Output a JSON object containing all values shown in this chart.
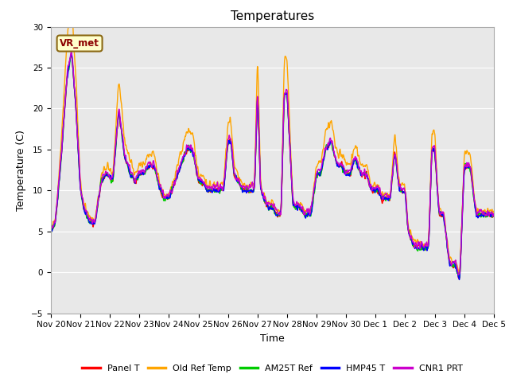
{
  "title": "Temperatures",
  "xlabel": "Time",
  "ylabel": "Temperature (C)",
  "ylim": [
    -5,
    30
  ],
  "background_color": "#ffffff",
  "plot_bg_color": "#e8e8e8",
  "grid_color": "#ffffff",
  "annotation_text": "VR_met",
  "annotation_bg": "#ffffcc",
  "annotation_border": "#8b6914",
  "annotation_text_color": "#8b0000",
  "x_tick_labels": [
    "Nov 20",
    "Nov 21",
    "Nov 22",
    "Nov 23",
    "Nov 24",
    "Nov 25",
    "Nov 26",
    "Nov 27",
    "Nov 28",
    "Nov 29",
    "Nov 30",
    "Dec 1",
    "Dec 2",
    "Dec 3",
    "Dec 4",
    "Dec 5"
  ],
  "series_names": [
    "Panel T",
    "Old Ref Temp",
    "AM25T Ref",
    "HMP45 T",
    "CNR1 PRT"
  ],
  "series_colors": [
    "#ff0000",
    "#ffa500",
    "#00cc00",
    "#0000ff",
    "#cc00cc"
  ],
  "series_lw": [
    1.0,
    1.0,
    1.0,
    1.0,
    1.0
  ],
  "yticks": [
    -5,
    0,
    5,
    10,
    15,
    20,
    25,
    30
  ],
  "title_fontsize": 11,
  "tick_fontsize": 7.5,
  "label_fontsize": 9,
  "ctrl_days": [
    0,
    0.15,
    0.35,
    0.55,
    0.7,
    0.85,
    1.0,
    1.1,
    1.2,
    1.35,
    1.5,
    1.7,
    1.9,
    2.1,
    2.3,
    2.5,
    2.7,
    2.85,
    3.0,
    3.15,
    3.3,
    3.5,
    3.7,
    3.85,
    4.0,
    4.2,
    4.4,
    4.6,
    4.8,
    5.0,
    5.15,
    5.3,
    5.5,
    5.7,
    5.85,
    6.0,
    6.1,
    6.2,
    6.35,
    6.5,
    6.65,
    6.8,
    6.9,
    7.0,
    7.1,
    7.2,
    7.35,
    7.5,
    7.65,
    7.8,
    7.9,
    8.0,
    8.2,
    8.4,
    8.6,
    8.8,
    9.0,
    9.15,
    9.3,
    9.5,
    9.7,
    9.85,
    10.0,
    10.15,
    10.3,
    10.5,
    10.7,
    10.85,
    11.0,
    11.1,
    11.2,
    11.35,
    11.5,
    11.65,
    11.8,
    11.9,
    12.0,
    12.1,
    12.2,
    12.35,
    12.5,
    12.65,
    12.8,
    12.9,
    13.0,
    13.15,
    13.3,
    13.5,
    13.7,
    13.85,
    14.0,
    14.2,
    14.4,
    14.6,
    14.8,
    15.0
  ],
  "ctrl_temps": [
    5,
    6,
    14,
    24,
    27,
    20,
    10,
    8,
    7,
    6,
    6,
    11,
    12,
    11,
    20,
    14,
    12,
    11,
    12,
    12,
    13,
    13,
    10,
    9,
    9,
    11,
    13,
    15,
    15,
    11,
    11,
    10,
    10,
    10,
    10,
    16,
    16,
    12,
    11,
    10,
    10,
    10,
    10,
    23,
    10,
    9,
    8,
    8,
    7,
    7,
    22,
    22,
    8,
    8,
    7,
    7,
    12,
    12,
    15,
    16,
    13,
    13,
    12,
    12,
    14,
    12,
    12,
    10,
    10,
    10,
    9,
    9,
    9,
    15,
    10,
    10,
    10,
    5,
    4,
    3,
    3,
    3,
    3,
    15,
    15,
    7,
    7,
    1,
    1,
    -1,
    13,
    13,
    7,
    7,
    7,
    7
  ]
}
